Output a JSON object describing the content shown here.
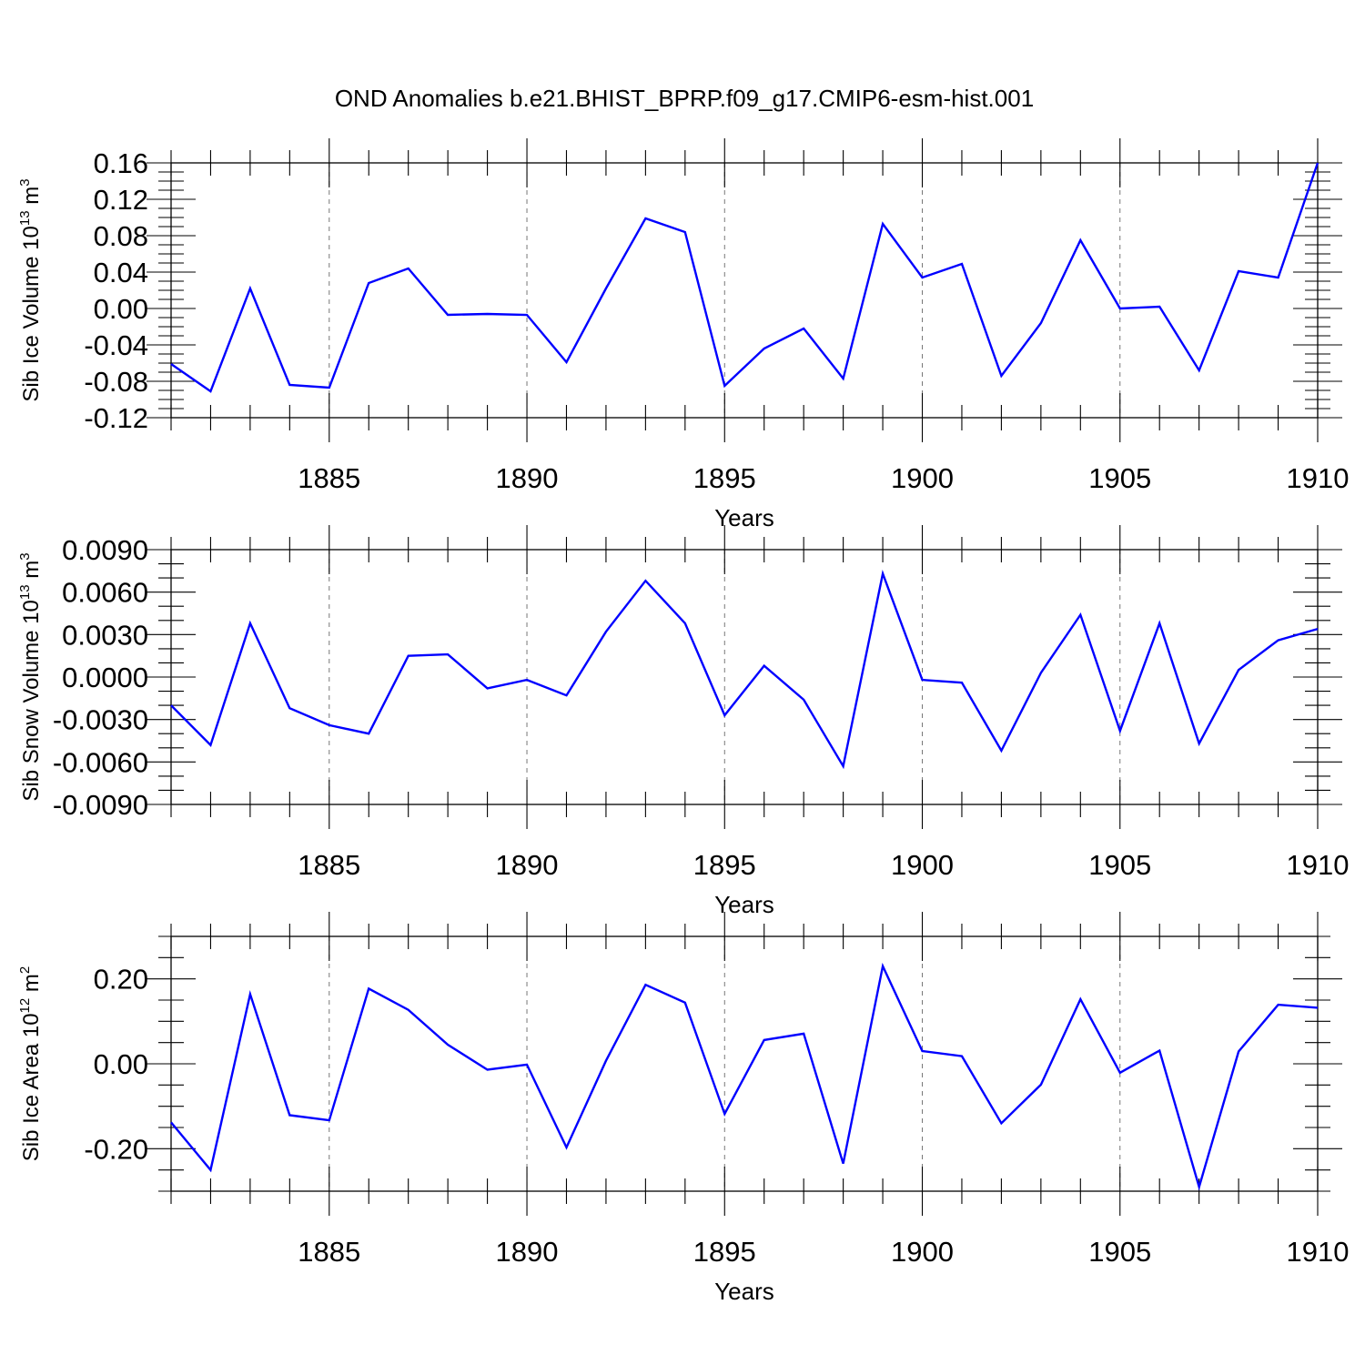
{
  "title": "OND Anomalies b.e21.BHIST_BPRP.f09_g17.CMIP6-esm-hist.001",
  "line_color": "#0000ff",
  "chart_data": [
    {
      "type": "line",
      "ylabel_main": "Sib Ice Volume 10",
      "ylabel_exp": "13",
      "ylabel_unit": " m",
      "ylabel_unit_exp": "3",
      "xlabel": "Years",
      "xlim": [
        1881,
        1910
      ],
      "ylim": [
        -0.12,
        0.16
      ],
      "yticks": [
        -0.12,
        -0.08,
        -0.04,
        0.0,
        0.04,
        0.08,
        0.12,
        0.16
      ],
      "yminor_step": 0.01,
      "ytick_labels": [
        "-0.12",
        "-0.08",
        "-0.04",
        "0.00",
        "0.04",
        "0.08",
        "0.12",
        "0.16"
      ],
      "xticks": [
        1885,
        1890,
        1895,
        1900,
        1905,
        1910
      ],
      "xtick_labels": [
        "1885",
        "1890",
        "1895",
        "1900",
        "1905",
        "1910"
      ],
      "grid_x": [
        1885,
        1890,
        1895,
        1900,
        1905
      ],
      "x": [
        1881,
        1882,
        1883,
        1884,
        1885,
        1886,
        1887,
        1888,
        1889,
        1890,
        1891,
        1892,
        1893,
        1894,
        1895,
        1896,
        1897,
        1898,
        1899,
        1900,
        1901,
        1902,
        1903,
        1904,
        1905,
        1906,
        1907,
        1908,
        1909,
        1910
      ],
      "y": [
        -0.061,
        -0.091,
        0.022,
        -0.084,
        -0.087,
        0.028,
        0.044,
        -0.007,
        -0.006,
        -0.007,
        -0.059,
        0.022,
        0.099,
        0.084,
        -0.085,
        -0.044,
        -0.022,
        -0.077,
        0.093,
        0.034,
        0.049,
        -0.074,
        -0.016,
        0.075,
        0.0,
        0.002,
        -0.068,
        0.041,
        0.034,
        0.16
      ]
    },
    {
      "type": "line",
      "ylabel_main": "Sib Snow Volume 10",
      "ylabel_exp": "13",
      "ylabel_unit": " m",
      "ylabel_unit_exp": "3",
      "xlabel": "Years",
      "xlim": [
        1881,
        1910
      ],
      "ylim": [
        -0.009,
        0.009
      ],
      "yticks": [
        -0.009,
        -0.006,
        -0.003,
        0.0,
        0.003,
        0.006,
        0.009
      ],
      "yminor_step": 0.001,
      "ytick_labels": [
        "-0.0090",
        "-0.0060",
        "-0.0030",
        "0.0000",
        "0.0030",
        "0.0060",
        "0.0090"
      ],
      "xticks": [
        1885,
        1890,
        1895,
        1900,
        1905,
        1910
      ],
      "xtick_labels": [
        "1885",
        "1890",
        "1895",
        "1900",
        "1905",
        "1910"
      ],
      "grid_x": [
        1885,
        1890,
        1895,
        1900,
        1905
      ],
      "x": [
        1881,
        1882,
        1883,
        1884,
        1885,
        1886,
        1887,
        1888,
        1889,
        1890,
        1891,
        1892,
        1893,
        1894,
        1895,
        1896,
        1897,
        1898,
        1899,
        1900,
        1901,
        1902,
        1903,
        1904,
        1905,
        1906,
        1907,
        1908,
        1909,
        1910
      ],
      "y": [
        -0.002,
        -0.0048,
        0.0038,
        -0.0022,
        -0.0034,
        -0.004,
        0.0015,
        0.0016,
        -0.0008,
        -0.0002,
        -0.0013,
        0.0032,
        0.0068,
        0.0038,
        -0.0027,
        0.0008,
        -0.0016,
        -0.0063,
        0.0073,
        -0.0002,
        -0.0004,
        -0.0052,
        0.0003,
        0.0044,
        -0.0038,
        0.0038,
        -0.0047,
        0.0005,
        0.0026,
        0.0034
      ]
    },
    {
      "type": "line",
      "ylabel_main": "Sib Ice Area 10",
      "ylabel_exp": "12",
      "ylabel_unit": " m",
      "ylabel_unit_exp": "2",
      "xlabel": "Years",
      "xlim": [
        1881,
        1910
      ],
      "ylim": [
        -0.3,
        0.3
      ],
      "yticks": [
        -0.2,
        0.0,
        0.2
      ],
      "yminor_step": 0.05,
      "ytick_labels": [
        "-0.20",
        "0.00",
        "0.20"
      ],
      "xticks": [
        1885,
        1890,
        1895,
        1900,
        1905,
        1910
      ],
      "xtick_labels": [
        "1885",
        "1890",
        "1895",
        "1900",
        "1905",
        "1910"
      ],
      "grid_x": [
        1885,
        1890,
        1895,
        1900,
        1905
      ],
      "x": [
        1881,
        1882,
        1883,
        1884,
        1885,
        1886,
        1887,
        1888,
        1889,
        1890,
        1891,
        1892,
        1893,
        1894,
        1895,
        1896,
        1897,
        1898,
        1899,
        1900,
        1901,
        1902,
        1903,
        1904,
        1905,
        1906,
        1907,
        1908,
        1909,
        1910
      ],
      "y": [
        -0.138,
        -0.25,
        0.164,
        -0.121,
        -0.133,
        0.177,
        0.127,
        0.045,
        -0.014,
        -0.002,
        -0.197,
        0.007,
        0.186,
        0.144,
        -0.118,
        0.056,
        0.071,
        -0.235,
        0.23,
        0.03,
        0.018,
        -0.14,
        -0.049,
        0.152,
        -0.021,
        0.031,
        -0.29,
        0.029,
        0.139,
        0.132
      ]
    }
  ]
}
